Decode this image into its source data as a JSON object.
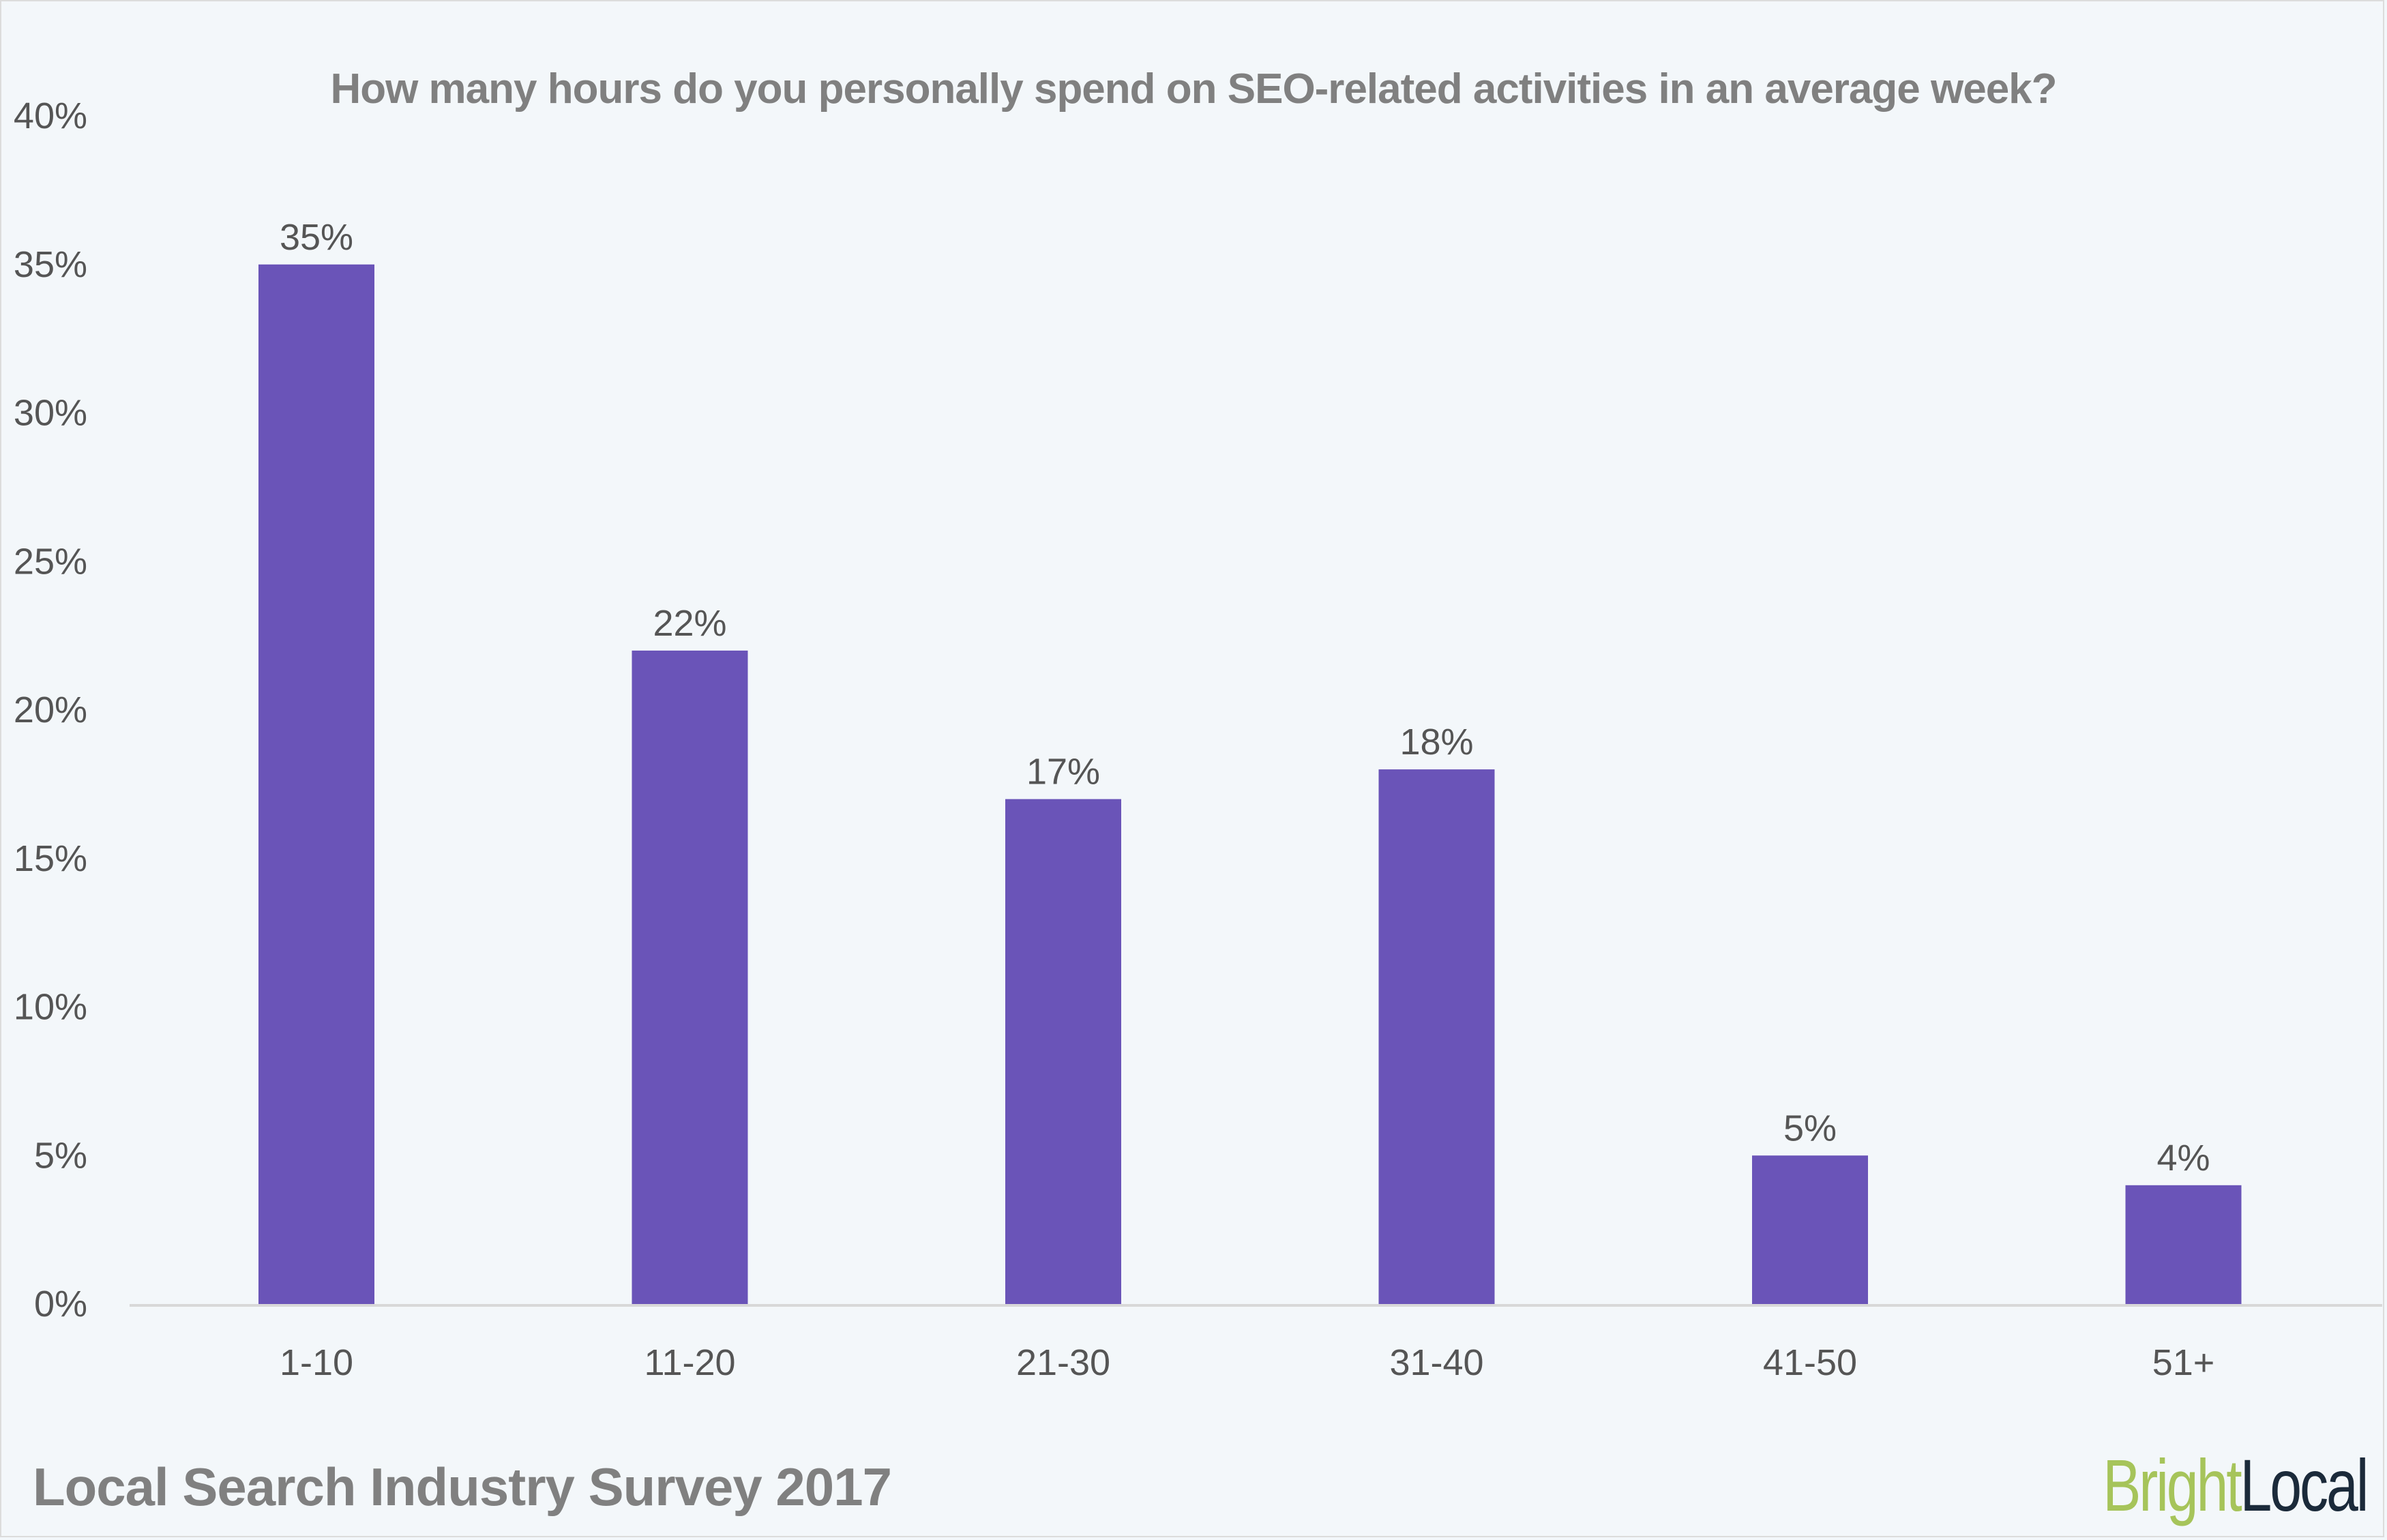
{
  "chart_data": {
    "type": "bar",
    "title": "How many hours do you personally spend on SEO-related activities in an average week?",
    "xlabel": "",
    "ylabel": "",
    "categories": [
      "1-10",
      "11-20",
      "21-30",
      "31-40",
      "41-50",
      "51+"
    ],
    "values": [
      35,
      22,
      17,
      18,
      5,
      4
    ],
    "data_labels": [
      "35%",
      "22%",
      "17%",
      "18%",
      "5%",
      "4%"
    ],
    "ylim": [
      0,
      40
    ],
    "yticks": [
      0,
      5,
      10,
      15,
      20,
      25,
      30,
      35,
      40
    ],
    "ytick_labels": [
      "0%",
      "5%",
      "10%",
      "15%",
      "20%",
      "25%",
      "30%",
      "35%",
      "40%"
    ],
    "grid": false,
    "bar_color": "#6a54b8"
  },
  "footer": {
    "source": "Local Search Industry Survey 2017",
    "logo_bright": "Bright",
    "logo_local": "Local"
  },
  "colors": {
    "background": "#f3f7fa",
    "text": "#555555",
    "title": "#808080",
    "logo_green": "#a6c45a",
    "logo_dark": "#1b2a3a"
  }
}
